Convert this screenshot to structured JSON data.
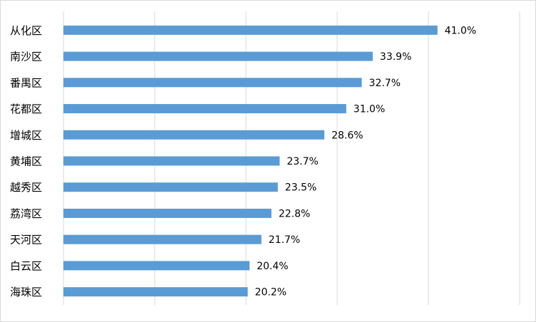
{
  "chart_data": {
    "type": "bar",
    "orientation": "horizontal",
    "categories": [
      "从化区",
      "南沙区",
      "番禺区",
      "花都区",
      "增城区",
      "黄埔区",
      "越秀区",
      "荔湾区",
      "天河区",
      "白云区",
      "海珠区"
    ],
    "values": [
      41.0,
      33.9,
      32.7,
      31.0,
      28.6,
      23.7,
      23.5,
      22.8,
      21.7,
      20.4,
      20.2
    ],
    "value_labels": [
      "41.0%",
      "33.9%",
      "32.7%",
      "31.0%",
      "28.6%",
      "23.7%",
      "23.5%",
      "22.8%",
      "21.7%",
      "20.4%",
      "20.2%"
    ],
    "xlim": [
      0,
      50
    ],
    "grid": "vertical",
    "bar_color": "#5b9bd5",
    "grid_color": "#d9d9d9",
    "title": "",
    "xlabel": "",
    "ylabel": ""
  }
}
